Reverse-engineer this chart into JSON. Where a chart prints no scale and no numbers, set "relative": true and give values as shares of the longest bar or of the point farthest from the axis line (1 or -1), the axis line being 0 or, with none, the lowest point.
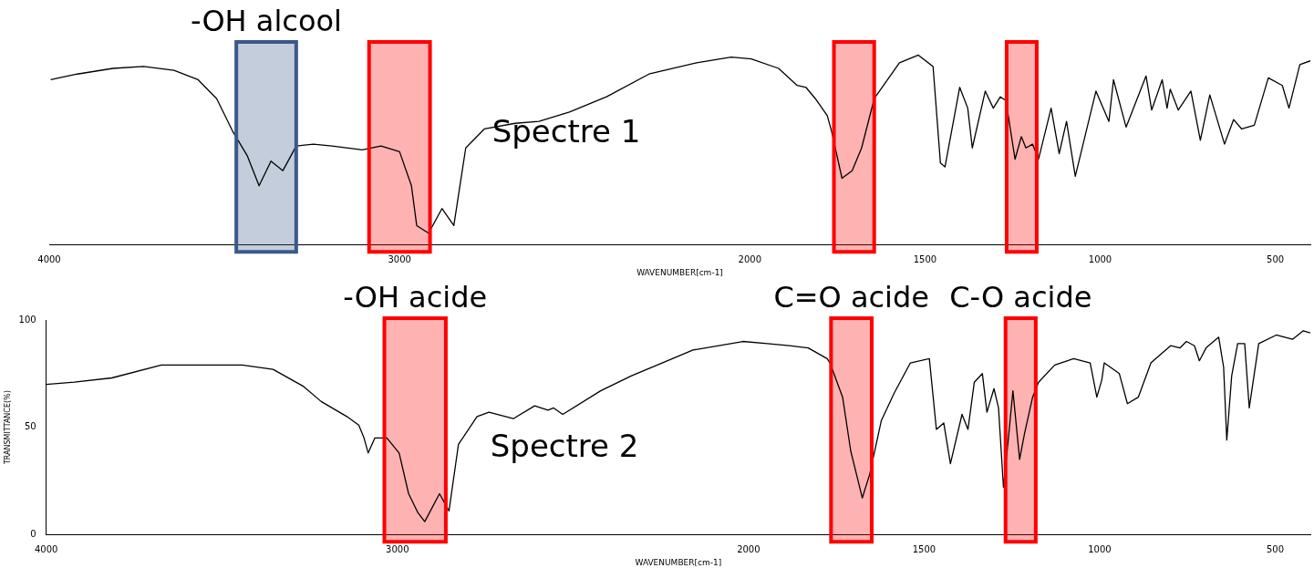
{
  "chart_data": [
    {
      "type": "line",
      "relative": true,
      "color": "#000000",
      "marker": "none",
      "line_style": "solid",
      "grid": false,
      "legend": false,
      "xlabel": "WAVENUMBER[cm-1]",
      "xlim": [
        4000,
        400
      ],
      "xticks": [
        4000,
        3000,
        2000,
        1500,
        1000,
        500
      ],
      "x": [
        3996,
        3920,
        3818,
        3731,
        3644,
        3575,
        3522,
        3477,
        3435,
        3401,
        3367,
        3333,
        3295,
        3246,
        3193,
        3106,
        3053,
        3000,
        2966,
        2951,
        2917,
        2879,
        2845,
        2826,
        2811,
        2758,
        2670,
        2602,
        2515,
        2409,
        2288,
        2152,
        2053,
        1996,
        1918,
        1865,
        1840,
        1813,
        1779,
        1767,
        1737,
        1708,
        1681,
        1645,
        1573,
        1519,
        1477,
        1456,
        1443,
        1401,
        1378,
        1365,
        1328,
        1305,
        1285,
        1269,
        1243,
        1225,
        1212,
        1193,
        1176,
        1140,
        1117,
        1096,
        1071,
        1012,
        975,
        962,
        926,
        869,
        853,
        823,
        809,
        800,
        777,
        741,
        714,
        687,
        645,
        619,
        596,
        560,
        520,
        480,
        461,
        430,
        400
      ],
      "values": [
        0.87,
        0.9,
        0.93,
        0.94,
        0.92,
        0.87,
        0.77,
        0.6,
        0.47,
        0.31,
        0.44,
        0.39,
        0.52,
        0.53,
        0.52,
        0.5,
        0.52,
        0.49,
        0.31,
        0.1,
        0.06,
        0.19,
        0.1,
        0.33,
        0.51,
        0.61,
        0.64,
        0.65,
        0.7,
        0.78,
        0.9,
        0.96,
        0.99,
        0.98,
        0.93,
        0.84,
        0.83,
        0.77,
        0.68,
        0.6,
        0.35,
        0.39,
        0.51,
        0.77,
        0.96,
        1,
        0.94,
        0.43,
        0.41,
        0.83,
        0.72,
        0.51,
        0.81,
        0.72,
        0.78,
        0.76,
        0.45,
        0.57,
        0.51,
        0.53,
        0.45,
        0.72,
        0.48,
        0.65,
        0.36,
        0.81,
        0.65,
        0.87,
        0.62,
        0.89,
        0.71,
        0.87,
        0.72,
        0.82,
        0.71,
        0.81,
        0.55,
        0.79,
        0.53,
        0.66,
        0.61,
        0.63,
        0.88,
        0.84,
        0.72,
        0.95,
        0.97
      ],
      "bands": [
        {
          "axis": "x",
          "from": 3466,
          "to": 3295,
          "label": "-OH alcool",
          "color": "#3a5a8a"
        },
        {
          "axis": "x",
          "from": 3087,
          "to": 2913,
          "color": "#ff0000"
        },
        {
          "axis": "x",
          "from": 1760,
          "to": 1645,
          "color": "#ff0000"
        },
        {
          "axis": "x",
          "from": 1267,
          "to": 1181,
          "color": "#ff0000"
        }
      ],
      "annotations": [
        "Spectre 1"
      ]
    },
    {
      "type": "line",
      "color": "#000000",
      "marker": "none",
      "line_style": "solid",
      "grid": false,
      "legend": false,
      "xlabel": "WAVENUMBER[cm-1]",
      "ylabel": "TRANSMITTANCE(%)",
      "xlim": [
        4000,
        400
      ],
      "xticks": [
        4000,
        3000,
        2000,
        1500,
        1000,
        500
      ],
      "ylim": [
        0,
        100
      ],
      "yticks": [
        0,
        50,
        100
      ],
      "x": [
        4000,
        3920,
        3813,
        3672,
        3568,
        3442,
        3354,
        3267,
        3217,
        3144,
        3110,
        3095,
        3083,
        3064,
        3030,
        2995,
        2968,
        2941,
        2922,
        2880,
        2853,
        2826,
        2773,
        2739,
        2670,
        2609,
        2571,
        2555,
        2529,
        2421,
        2333,
        2246,
        2158,
        2016,
        1946,
        1884,
        1830,
        1776,
        1768,
        1732,
        1709,
        1676,
        1655,
        1622,
        1585,
        1539,
        1485,
        1465,
        1444,
        1425,
        1392,
        1375,
        1357,
        1334,
        1321,
        1301,
        1288,
        1274,
        1261,
        1247,
        1228,
        1214,
        1191,
        1174,
        1128,
        1074,
        1027,
        1008,
        994,
        987,
        944,
        921,
        890,
        854,
        798,
        771,
        753,
        730,
        716,
        697,
        661,
        647,
        638,
        624,
        607,
        587,
        574,
        547,
        497,
        451,
        420,
        400
      ],
      "values": [
        70,
        71,
        73,
        79,
        79,
        79,
        77,
        69,
        62,
        55,
        51,
        45,
        38,
        45,
        45,
        38,
        19,
        10,
        6,
        19,
        11,
        42,
        55,
        57,
        54,
        60,
        58,
        59,
        56,
        67,
        74,
        80,
        86,
        90,
        89,
        88,
        87,
        82,
        80,
        64,
        39,
        17,
        28,
        53,
        66,
        80,
        82,
        49,
        52,
        33,
        56,
        49,
        71,
        75,
        57,
        68,
        59,
        22,
        43,
        67,
        35,
        47,
        64,
        71,
        79,
        82,
        80,
        64,
        72,
        80,
        75,
        61,
        64,
        80,
        88,
        87,
        90,
        88,
        81,
        87,
        92,
        78,
        44,
        74,
        89,
        89,
        59,
        89,
        93,
        91,
        95,
        94
      ],
      "bands": [
        {
          "axis": "x",
          "from": 3037,
          "to": 2862,
          "label": "-OH acide",
          "color": "#ff0000"
        },
        {
          "axis": "x",
          "from": 1765,
          "to": 1649,
          "label": "C=O acide",
          "color": "#ff0000"
        },
        {
          "axis": "x",
          "from": 1268,
          "to": 1182,
          "label": "C-O acide",
          "color": "#ff0000"
        }
      ],
      "annotations": [
        "Spectre 2"
      ]
    }
  ]
}
